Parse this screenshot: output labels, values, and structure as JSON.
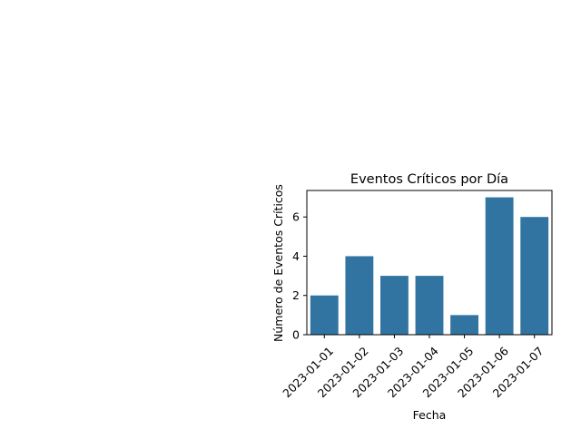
{
  "chart_data": {
    "type": "bar",
    "title": "Eventos Críticos por Día",
    "xlabel": "Fecha",
    "ylabel": "Número de Eventos Críticos",
    "categories": [
      "2023-01-01",
      "2023-01-02",
      "2023-01-03",
      "2023-01-04",
      "2023-01-05",
      "2023-01-06",
      "2023-01-07"
    ],
    "values": [
      2,
      4,
      3,
      3,
      1,
      7,
      6
    ],
    "ylim": [
      0,
      7.35
    ],
    "yticks": [
      0,
      2,
      4,
      6
    ],
    "grid": false,
    "bar_color": "#3274a1"
  }
}
